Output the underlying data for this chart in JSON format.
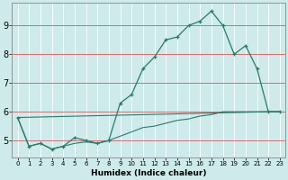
{
  "xlabel": "Humidex (Indice chaleur)",
  "bg_color": "#ceeaea",
  "line_color": "#2a7a6a",
  "grid_color": "#ffffff",
  "red_line_color": "#cc3333",
  "xlim": [
    -0.5,
    23.5
  ],
  "ylim": [
    4.4,
    9.8
  ],
  "xticks": [
    0,
    1,
    2,
    3,
    4,
    5,
    6,
    7,
    8,
    9,
    10,
    11,
    12,
    13,
    14,
    15,
    16,
    17,
    18,
    19,
    20,
    21,
    22,
    23
  ],
  "yticks": [
    5,
    6,
    7,
    8,
    9
  ],
  "line1_x": [
    0,
    1,
    2,
    3,
    4,
    5,
    6,
    7,
    8,
    9,
    10,
    11,
    12,
    13,
    14,
    15,
    16,
    17,
    18,
    19,
    20,
    21,
    22,
    23
  ],
  "line1_y": [
    5.8,
    4.8,
    4.9,
    4.7,
    4.8,
    5.1,
    5.0,
    4.9,
    5.0,
    6.3,
    6.6,
    7.5,
    7.9,
    8.5,
    8.6,
    9.0,
    9.15,
    9.5,
    9.0,
    8.0,
    8.3,
    7.5,
    6.0,
    6.0
  ],
  "line2_x": [
    0,
    22,
    23
  ],
  "line2_y": [
    5.8,
    6.0,
    6.0
  ],
  "line3_x": [
    0,
    1,
    2,
    3,
    4,
    5,
    6,
    7,
    8,
    9,
    10,
    11,
    12,
    13,
    14,
    15,
    16,
    17,
    18,
    19,
    20,
    21,
    22,
    23
  ],
  "line3_y": [
    5.8,
    4.8,
    4.9,
    4.7,
    4.8,
    4.9,
    4.95,
    4.9,
    5.0,
    5.15,
    5.3,
    5.45,
    5.5,
    5.6,
    5.7,
    5.75,
    5.85,
    5.9,
    6.0,
    6.0,
    6.0,
    6.0,
    6.0,
    6.0
  ]
}
